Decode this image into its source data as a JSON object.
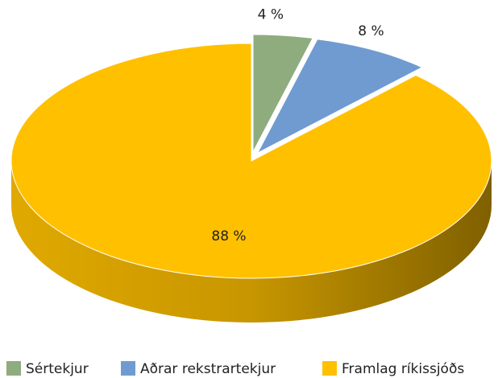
{
  "chart_data": {
    "type": "pie",
    "categories": [
      "Sértekjur",
      "Aðrar rekstrartekjur",
      "Framlag ríkissjóðs"
    ],
    "values": [
      4,
      8,
      88
    ],
    "value_labels": [
      "4 %",
      "8 %",
      "88 %"
    ],
    "colors": [
      "#8fac7e",
      "#6f9bd1",
      "#ffc000"
    ],
    "legend": "bottom"
  }
}
